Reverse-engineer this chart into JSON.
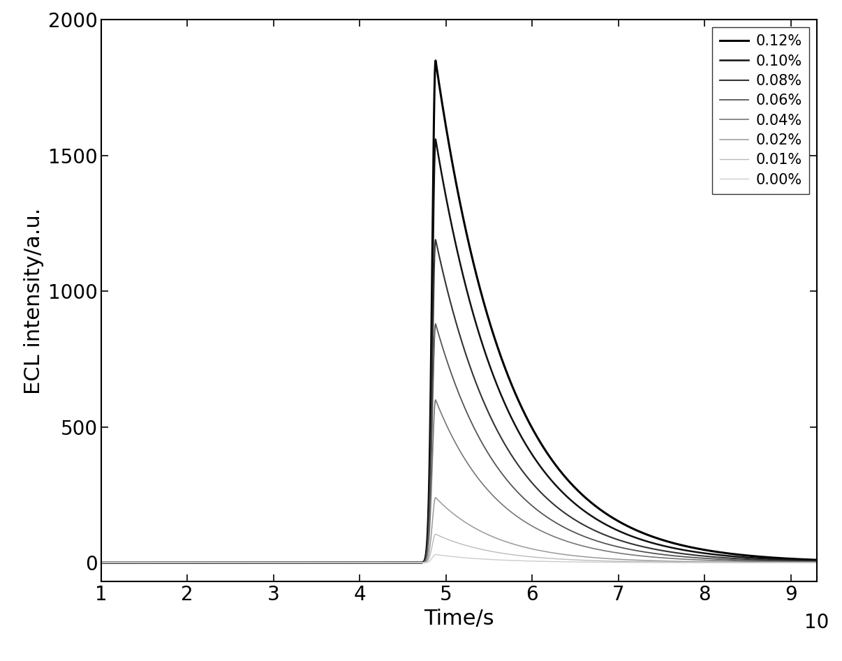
{
  "series": [
    {
      "label": "0.12%",
      "peak": 1850,
      "color": "#000000",
      "linewidth": 2.2,
      "decay_tau": 0.85
    },
    {
      "label": "0.10%",
      "peak": 1560,
      "color": "#111111",
      "linewidth": 1.8,
      "decay_tau": 0.82
    },
    {
      "label": "0.08%",
      "peak": 1190,
      "color": "#333333",
      "linewidth": 1.5,
      "decay_tau": 0.8
    },
    {
      "label": "0.06%",
      "peak": 880,
      "color": "#555555",
      "linewidth": 1.3,
      "decay_tau": 0.78
    },
    {
      "label": "0.04%",
      "peak": 600,
      "color": "#777777",
      "linewidth": 1.2,
      "decay_tau": 0.75
    },
    {
      "label": "0.02%",
      "peak": 240,
      "color": "#999999",
      "linewidth": 1.1,
      "decay_tau": 0.72
    },
    {
      "label": "0.01%",
      "peak": 105,
      "color": "#bbbbbb",
      "linewidth": 1.0,
      "decay_tau": 0.7
    },
    {
      "label": "0.00%",
      "peak": 30,
      "color": "#cccccc",
      "linewidth": 1.0,
      "decay_tau": 0.68
    }
  ],
  "xlim": [
    1,
    9.3
  ],
  "ylim": [
    -70,
    2000
  ],
  "xticks": [
    1,
    2,
    3,
    4,
    5,
    6,
    7,
    8,
    9
  ],
  "xtick_labels": [
    "1",
    "2",
    "3",
    "4",
    "5",
    "6",
    "7",
    "8",
    "9"
  ],
  "yticks": [
    0,
    500,
    1000,
    1500,
    2000
  ],
  "xlabel": "Time/s",
  "ylabel": "ECL intensity/a.u.",
  "peak_time": 4.88,
  "rise_start": 4.45,
  "rise_sigma": 0.055,
  "background_color": "#ffffff",
  "legend_loc": "upper right",
  "tick_fontsize": 20,
  "label_fontsize": 22,
  "legend_fontsize": 15
}
